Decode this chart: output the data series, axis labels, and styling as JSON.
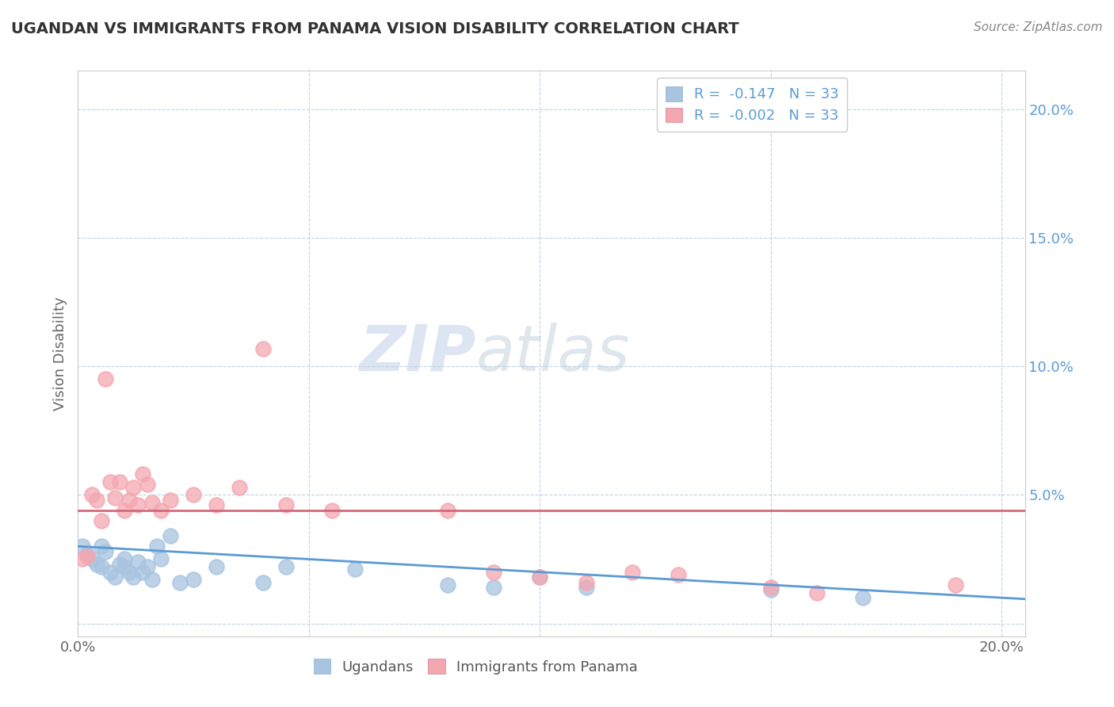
{
  "title": "UGANDAN VS IMMIGRANTS FROM PANAMA VISION DISABILITY CORRELATION CHART",
  "source": "Source: ZipAtlas.com",
  "ylabel": "Vision Disability",
  "ugandan_color": "#a8c4e0",
  "panama_color": "#f4a7b0",
  "trend_ugandan_color": "#5b9bd5",
  "trend_panama_color": "#d4687a",
  "watermark_zip": "ZIP",
  "watermark_atlas": "atlas",
  "legend_r1": "R =  -0.147   N = 33",
  "legend_r2": "R =  -0.002   N = 33",
  "xlim": [
    0.0,
    0.205
  ],
  "ylim": [
    -0.005,
    0.215
  ],
  "ugandan_points": [
    [
      0.001,
      0.03
    ],
    [
      0.002,
      0.027
    ],
    [
      0.003,
      0.025
    ],
    [
      0.004,
      0.023
    ],
    [
      0.005,
      0.03
    ],
    [
      0.005,
      0.022
    ],
    [
      0.006,
      0.028
    ],
    [
      0.007,
      0.02
    ],
    [
      0.008,
      0.018
    ],
    [
      0.009,
      0.023
    ],
    [
      0.01,
      0.025
    ],
    [
      0.01,
      0.022
    ],
    [
      0.011,
      0.02
    ],
    [
      0.012,
      0.018
    ],
    [
      0.013,
      0.024
    ],
    [
      0.014,
      0.02
    ],
    [
      0.015,
      0.022
    ],
    [
      0.016,
      0.017
    ],
    [
      0.017,
      0.03
    ],
    [
      0.018,
      0.025
    ],
    [
      0.02,
      0.034
    ],
    [
      0.022,
      0.016
    ],
    [
      0.025,
      0.017
    ],
    [
      0.03,
      0.022
    ],
    [
      0.04,
      0.016
    ],
    [
      0.045,
      0.022
    ],
    [
      0.06,
      0.021
    ],
    [
      0.08,
      0.015
    ],
    [
      0.09,
      0.014
    ],
    [
      0.1,
      0.018
    ],
    [
      0.11,
      0.014
    ],
    [
      0.15,
      0.013
    ],
    [
      0.17,
      0.01
    ]
  ],
  "panama_points": [
    [
      0.001,
      0.025
    ],
    [
      0.002,
      0.026
    ],
    [
      0.003,
      0.05
    ],
    [
      0.004,
      0.048
    ],
    [
      0.005,
      0.04
    ],
    [
      0.006,
      0.095
    ],
    [
      0.007,
      0.055
    ],
    [
      0.008,
      0.049
    ],
    [
      0.009,
      0.055
    ],
    [
      0.01,
      0.044
    ],
    [
      0.011,
      0.048
    ],
    [
      0.012,
      0.053
    ],
    [
      0.013,
      0.046
    ],
    [
      0.014,
      0.058
    ],
    [
      0.015,
      0.054
    ],
    [
      0.016,
      0.047
    ],
    [
      0.018,
      0.044
    ],
    [
      0.02,
      0.048
    ],
    [
      0.025,
      0.05
    ],
    [
      0.03,
      0.046
    ],
    [
      0.035,
      0.053
    ],
    [
      0.04,
      0.107
    ],
    [
      0.045,
      0.046
    ],
    [
      0.055,
      0.044
    ],
    [
      0.08,
      0.044
    ],
    [
      0.09,
      0.02
    ],
    [
      0.1,
      0.018
    ],
    [
      0.11,
      0.016
    ],
    [
      0.12,
      0.02
    ],
    [
      0.13,
      0.019
    ],
    [
      0.15,
      0.014
    ],
    [
      0.16,
      0.012
    ],
    [
      0.19,
      0.015
    ]
  ],
  "background_color": "#ffffff"
}
